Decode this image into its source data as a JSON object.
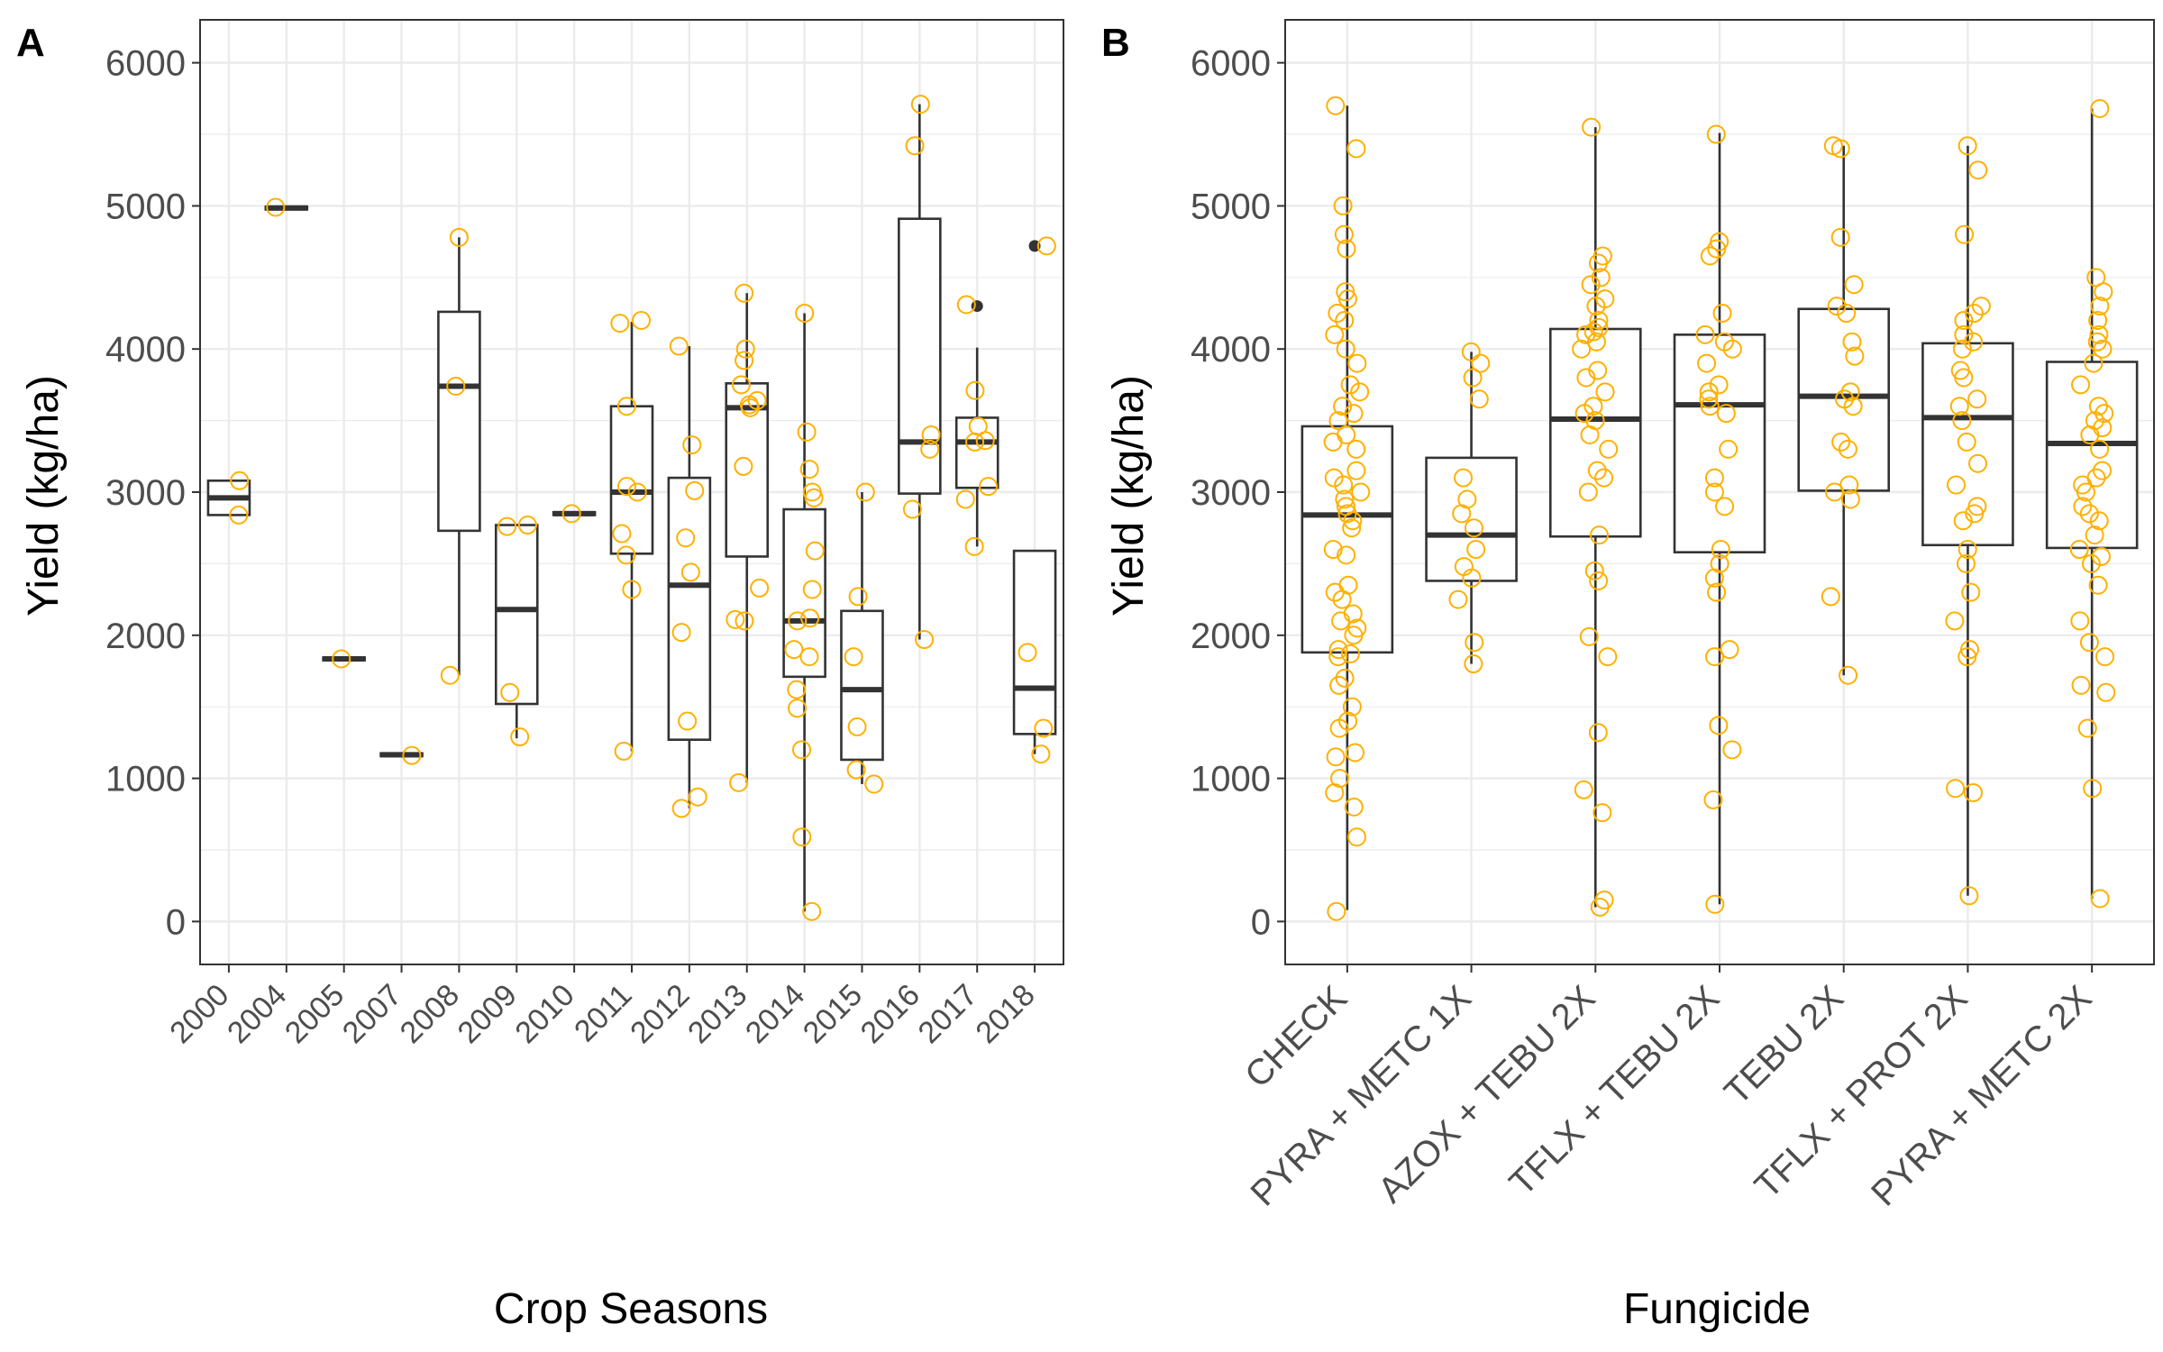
{
  "style": {
    "point_color": "#FFB000",
    "box_color": "#333333",
    "grid_color": "#EBEBEB",
    "panel_border": "#333333",
    "text_color": "#4D4D4D"
  },
  "chart_data": [
    {
      "panel_label": "A",
      "type": "boxplot",
      "xlabel": "Crop Seasons",
      "ylabel": "Yield (kg/ha)",
      "ylim": [
        -300,
        6300
      ],
      "yticks": [
        0,
        1000,
        2000,
        3000,
        4000,
        5000,
        6000
      ],
      "grid": true,
      "categories": [
        "2000",
        "2004",
        "2005",
        "2007",
        "2008",
        "2009",
        "2010",
        "2011",
        "2012",
        "2013",
        "2014",
        "2015",
        "2016",
        "2017",
        "2018"
      ],
      "boxes": [
        {
          "q1": 2840,
          "median": 2960,
          "q3": 3080,
          "lower": 2840,
          "upper": 3080,
          "outliers": []
        },
        {
          "q1": 4975,
          "median": 4985,
          "q3": 4995,
          "lower": 4975,
          "upper": 4995,
          "outliers": []
        },
        {
          "q1": 1825,
          "median": 1835,
          "q3": 1845,
          "lower": 1825,
          "upper": 1845,
          "outliers": []
        },
        {
          "q1": 1155,
          "median": 1165,
          "q3": 1175,
          "lower": 1155,
          "upper": 1175,
          "outliers": []
        },
        {
          "q1": 2730,
          "median": 3740,
          "q3": 4260,
          "lower": 1720,
          "upper": 4780,
          "outliers": []
        },
        {
          "q1": 1520,
          "median": 2180,
          "q3": 2770,
          "lower": 1280,
          "upper": 2770,
          "outliers": []
        },
        {
          "q1": 2840,
          "median": 2850,
          "q3": 2860,
          "lower": 2840,
          "upper": 2860,
          "outliers": []
        },
        {
          "q1": 2570,
          "median": 3000,
          "q3": 3600,
          "lower": 1190,
          "upper": 4190,
          "outliers": []
        },
        {
          "q1": 1270,
          "median": 2350,
          "q3": 3100,
          "lower": 790,
          "upper": 4020,
          "outliers": []
        },
        {
          "q1": 2550,
          "median": 3590,
          "q3": 3760,
          "lower": 970,
          "upper": 4390,
          "outliers": []
        },
        {
          "q1": 1710,
          "median": 2100,
          "q3": 2880,
          "lower": 70,
          "upper": 4250,
          "outliers": []
        },
        {
          "q1": 1130,
          "median": 1620,
          "q3": 2170,
          "lower": 960,
          "upper": 3000,
          "outliers": []
        },
        {
          "q1": 2990,
          "median": 3350,
          "q3": 4910,
          "lower": 1970,
          "upper": 5710,
          "outliers": []
        },
        {
          "q1": 3030,
          "median": 3350,
          "q3": 3520,
          "lower": 2620,
          "upper": 4010,
          "outliers": [
            4300
          ]
        },
        {
          "q1": 1310,
          "median": 1630,
          "q3": 2590,
          "lower": 1170,
          "upper": 2590,
          "outliers": [
            4720
          ]
        }
      ],
      "points": [
        [
          2840,
          3080
        ],
        [
          4990
        ],
        [
          1835
        ],
        [
          1160
        ],
        [
          1720,
          3740,
          4780
        ],
        [
          1290,
          1600,
          2760,
          2770
        ],
        [
          2850
        ],
        [
          1190,
          2320,
          2560,
          2710,
          3000,
          3040,
          3600,
          4180,
          4200
        ],
        [
          790,
          870,
          1400,
          2020,
          2440,
          2680,
          3010,
          3330,
          4020
        ],
        [
          970,
          2100,
          2110,
          2330,
          3180,
          3590,
          3610,
          3640,
          3750,
          3920,
          4000,
          4390
        ],
        [
          70,
          590,
          1200,
          1490,
          1620,
          1850,
          1900,
          2100,
          2120,
          2320,
          2590,
          2960,
          3000,
          3160,
          3420,
          4250
        ],
        [
          960,
          1060,
          1360,
          1850,
          2270,
          3000
        ],
        [
          1970,
          2880,
          3300,
          3400,
          5420,
          5710
        ],
        [
          2620,
          2950,
          3040,
          3350,
          3360,
          3460,
          3710,
          4310
        ],
        [
          1170,
          1350,
          1880,
          4720
        ]
      ]
    },
    {
      "panel_label": "B",
      "type": "boxplot",
      "xlabel": "Fungicide",
      "ylabel": "Yield (kg/ha)",
      "ylim": [
        -300,
        6300
      ],
      "yticks": [
        0,
        1000,
        2000,
        3000,
        4000,
        5000,
        6000
      ],
      "grid": true,
      "categories": [
        "CHECK",
        "PYRA + METC 1X",
        "AZOX + TEBU 2X",
        "TFLX + TEBU 2X",
        "TEBU 2X",
        "TFLX + PROT 2X",
        "PYRA + METC 2X"
      ],
      "boxes": [
        {
          "q1": 1880,
          "median": 2840,
          "q3": 3460,
          "lower": 80,
          "upper": 5700,
          "outliers": []
        },
        {
          "q1": 2380,
          "median": 2700,
          "q3": 3240,
          "lower": 1800,
          "upper": 3980,
          "outliers": []
        },
        {
          "q1": 2690,
          "median": 3510,
          "q3": 4140,
          "lower": 100,
          "upper": 5550,
          "outliers": []
        },
        {
          "q1": 2580,
          "median": 3610,
          "q3": 4100,
          "lower": 120,
          "upper": 5510,
          "outliers": []
        },
        {
          "q1": 3010,
          "median": 3670,
          "q3": 4280,
          "lower": 1720,
          "upper": 5420,
          "outliers": []
        },
        {
          "q1": 2630,
          "median": 3520,
          "q3": 4040,
          "lower": 180,
          "upper": 5420,
          "outliers": []
        },
        {
          "q1": 2610,
          "median": 3340,
          "q3": 3910,
          "lower": 160,
          "upper": 5680,
          "outliers": []
        }
      ],
      "points": [
        [
          70,
          590,
          800,
          900,
          1000,
          1150,
          1180,
          1350,
          1400,
          1500,
          1650,
          1700,
          1850,
          1870,
          1900,
          2000,
          2050,
          2100,
          2150,
          2250,
          2300,
          2350,
          2560,
          2600,
          2750,
          2800,
          2850,
          2900,
          2950,
          3000,
          3050,
          3100,
          3150,
          3300,
          3350,
          3400,
          3500,
          3550,
          3600,
          3700,
          3750,
          3900,
          4000,
          4100,
          4200,
          4250,
          4350,
          4400,
          4700,
          4800,
          5000,
          5400,
          5700
        ],
        [
          1800,
          1950,
          2250,
          2400,
          2480,
          2600,
          2750,
          2850,
          2950,
          3100,
          3650,
          3800,
          3900,
          3980
        ],
        [
          100,
          150,
          760,
          920,
          1320,
          1850,
          1990,
          2380,
          2450,
          2700,
          3000,
          3100,
          3150,
          3300,
          3400,
          3500,
          3550,
          3600,
          3700,
          3800,
          3850,
          4000,
          4050,
          4100,
          4120,
          4150,
          4200,
          4300,
          4350,
          4450,
          4500,
          4600,
          4650,
          5550
        ],
        [
          120,
          850,
          1200,
          1370,
          1850,
          1900,
          2300,
          2400,
          2500,
          2600,
          2900,
          3000,
          3100,
          3300,
          3550,
          3600,
          3650,
          3700,
          3750,
          3900,
          4000,
          4050,
          4100,
          4250,
          4650,
          4700,
          4750,
          5500
        ],
        [
          1720,
          2270,
          2950,
          3000,
          3050,
          3300,
          3350,
          3600,
          3650,
          3700,
          3950,
          4050,
          4250,
          4300,
          4450,
          4780,
          5400,
          5420
        ],
        [
          180,
          900,
          930,
          1850,
          1900,
          2100,
          2300,
          2500,
          2600,
          2800,
          2850,
          2900,
          3050,
          3200,
          3350,
          3500,
          3600,
          3650,
          3800,
          3850,
          4000,
          4050,
          4100,
          4200,
          4250,
          4300,
          4800,
          5250,
          5420
        ],
        [
          160,
          930,
          1350,
          1600,
          1650,
          1850,
          1950,
          2100,
          2350,
          2500,
          2550,
          2600,
          2700,
          2800,
          2850,
          2900,
          3000,
          3050,
          3100,
          3150,
          3300,
          3400,
          3450,
          3500,
          3550,
          3600,
          3750,
          3900,
          4000,
          4050,
          4100,
          4200,
          4300,
          4400,
          4500,
          5680
        ]
      ]
    }
  ]
}
